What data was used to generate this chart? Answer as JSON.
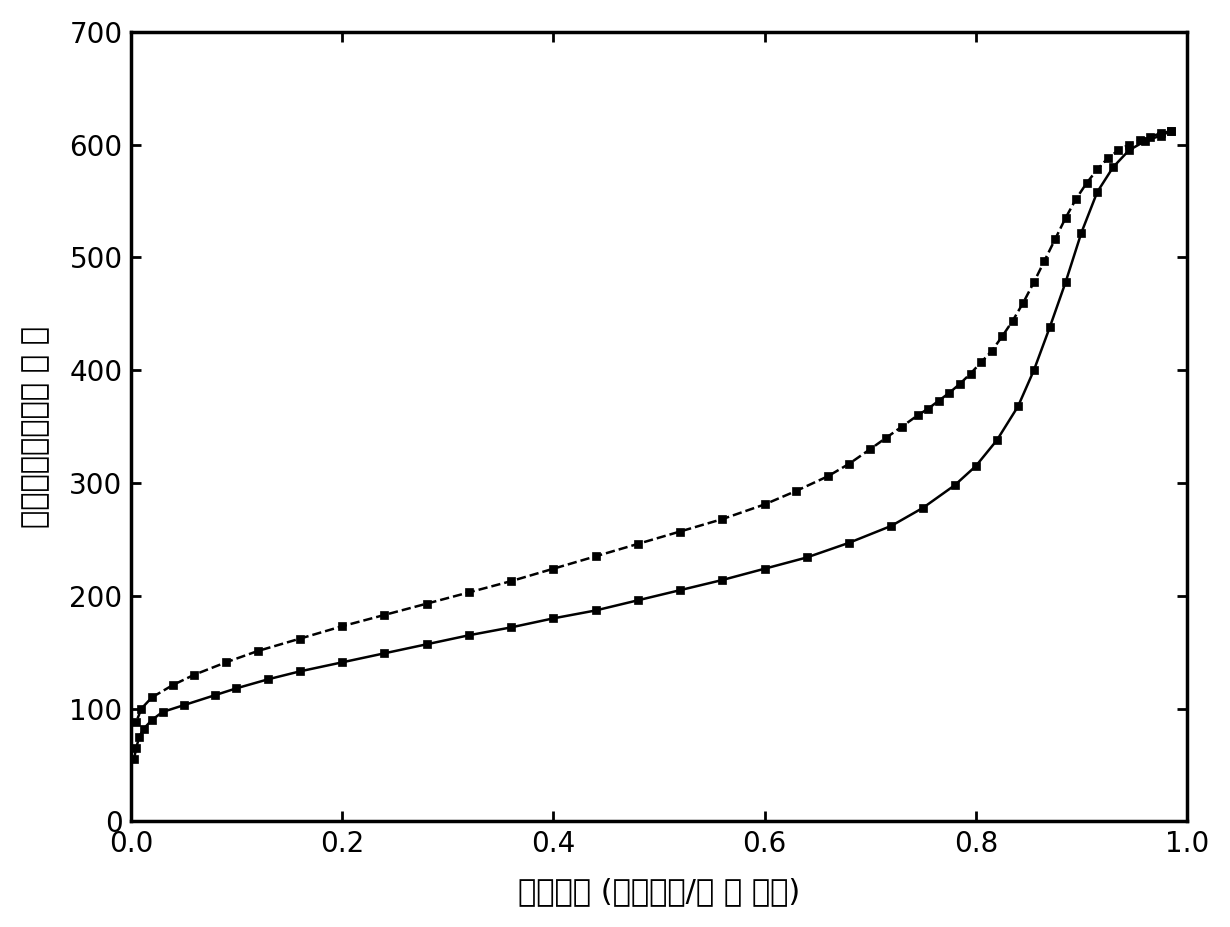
{
  "adsorption_x": [
    0.003,
    0.005,
    0.008,
    0.012,
    0.02,
    0.03,
    0.05,
    0.08,
    0.1,
    0.13,
    0.16,
    0.2,
    0.24,
    0.28,
    0.32,
    0.36,
    0.4,
    0.44,
    0.48,
    0.52,
    0.56,
    0.6,
    0.64,
    0.68,
    0.72,
    0.75,
    0.78,
    0.8,
    0.82,
    0.84,
    0.855,
    0.87,
    0.885,
    0.9,
    0.915,
    0.93,
    0.945,
    0.96,
    0.975,
    0.985
  ],
  "adsorption_y": [
    55,
    65,
    75,
    82,
    90,
    97,
    103,
    112,
    118,
    126,
    133,
    141,
    149,
    157,
    165,
    172,
    180,
    187,
    196,
    205,
    214,
    224,
    234,
    247,
    262,
    278,
    298,
    315,
    338,
    368,
    400,
    438,
    478,
    522,
    558,
    580,
    595,
    603,
    608,
    612
  ],
  "desorption_x": [
    0.985,
    0.975,
    0.965,
    0.955,
    0.945,
    0.935,
    0.925,
    0.915,
    0.905,
    0.895,
    0.885,
    0.875,
    0.865,
    0.855,
    0.845,
    0.835,
    0.825,
    0.815,
    0.805,
    0.795,
    0.785,
    0.775,
    0.765,
    0.755,
    0.745,
    0.73,
    0.715,
    0.7,
    0.68,
    0.66,
    0.63,
    0.6,
    0.56,
    0.52,
    0.48,
    0.44,
    0.4,
    0.36,
    0.32,
    0.28,
    0.24,
    0.2,
    0.16,
    0.12,
    0.09,
    0.06,
    0.04,
    0.02,
    0.01,
    0.005
  ],
  "desorption_y": [
    612,
    610,
    607,
    604,
    600,
    595,
    588,
    578,
    566,
    552,
    535,
    516,
    497,
    478,
    460,
    444,
    430,
    417,
    407,
    397,
    388,
    380,
    373,
    366,
    360,
    350,
    340,
    330,
    317,
    306,
    293,
    281,
    268,
    257,
    246,
    235,
    224,
    213,
    203,
    193,
    183,
    173,
    162,
    151,
    141,
    130,
    121,
    110,
    100,
    88
  ],
  "xlabel": "相对压力 (实际压力/标 准 压力)",
  "ylabel": "吸附量（克每立方 米 ）",
  "xlim": [
    0.0,
    1.0
  ],
  "ylim": [
    0,
    700
  ],
  "yticks": [
    0,
    100,
    200,
    300,
    400,
    500,
    600,
    700
  ],
  "xticks": [
    0.0,
    0.2,
    0.4,
    0.6,
    0.8,
    1.0
  ],
  "line_color": "#000000",
  "marker": "s",
  "markersize": 6,
  "linewidth": 1.8,
  "background_color": "#ffffff",
  "xlabel_fontsize": 22,
  "ylabel_fontsize": 22,
  "tick_fontsize": 20,
  "spine_linewidth": 2.5
}
